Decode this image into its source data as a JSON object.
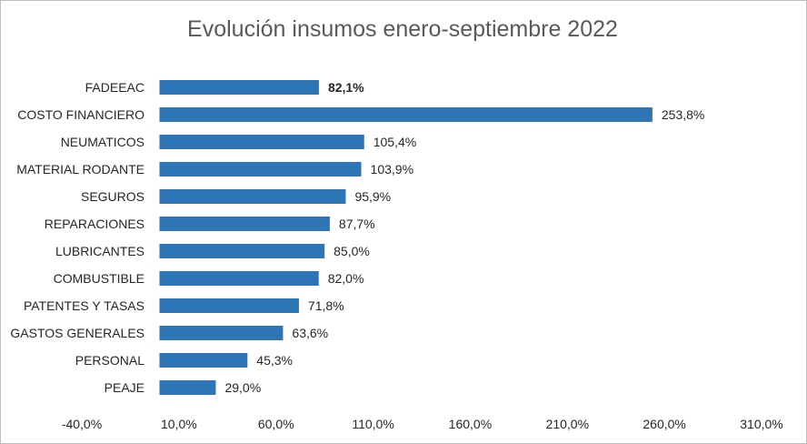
{
  "chart_data": {
    "type": "bar",
    "orientation": "horizontal",
    "title": "Evolución insumos enero-septiembre 2022",
    "categories": [
      "FADEEAC",
      "COSTO FINANCIERO",
      "NEUMATICOS",
      "MATERIAL RODANTE",
      "SEGUROS",
      "REPARACIONES",
      "LUBRICANTES",
      "COMBUSTIBLE",
      "PATENTES Y TASAS",
      "GASTOS GENERALES",
      "PERSONAL",
      "PEAJE"
    ],
    "values": [
      82.1,
      253.8,
      105.4,
      103.9,
      95.9,
      87.7,
      85.0,
      82.0,
      71.8,
      63.6,
      45.3,
      29.0
    ],
    "value_labels": [
      "82,1%",
      "253,8%",
      "105,4%",
      "103,9%",
      "95,9%",
      "87,7%",
      "85,0%",
      "82,0%",
      "71,8%",
      "63,6%",
      "45,3%",
      "29,0%"
    ],
    "highlight_index": 0,
    "x_ticks": [
      -40,
      10,
      60,
      110,
      160,
      210,
      260,
      310
    ],
    "x_tick_labels": [
      "-40,0%",
      "10,0%",
      "60,0%",
      "110,0%",
      "160,0%",
      "210,0%",
      "260,0%",
      "310,0%"
    ],
    "xlim": [
      -40,
      310
    ],
    "bar_color": "#2e75b6",
    "grid": false,
    "xlabel": "",
    "ylabel": ""
  }
}
